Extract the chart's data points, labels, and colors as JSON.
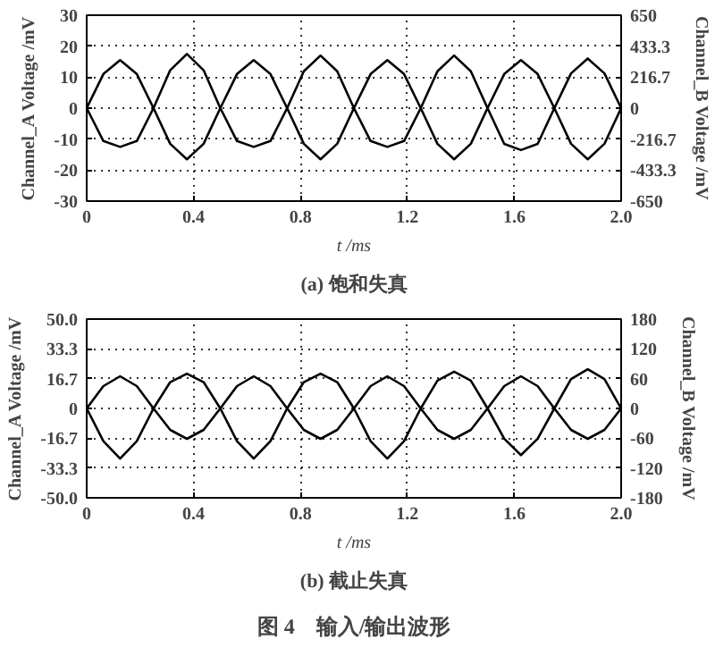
{
  "chart_data": [
    {
      "type": "line",
      "title": "(a) 饱和失真",
      "xlabel": "t /ms",
      "ylabel": "Channel_A Voltage /mV",
      "y2label": "Channel_B Voltage /mV",
      "x": [
        0,
        0.0625,
        0.125,
        0.1875,
        0.25,
        0.3125,
        0.375,
        0.4375,
        0.5,
        0.5625,
        0.625,
        0.6875,
        0.75,
        0.8125,
        0.875,
        0.9375,
        1.0,
        1.0625,
        1.125,
        1.1875,
        1.25,
        1.3125,
        1.375,
        1.4375,
        1.5,
        1.5625,
        1.625,
        1.6875,
        1.75,
        1.8125,
        1.875,
        1.9375,
        2.0
      ],
      "series": [
        {
          "color": "#000000",
          "values": [
            0,
            11,
            15.5,
            11,
            0,
            -11.5,
            -16.5,
            -11.5,
            0,
            11,
            15.5,
            11,
            0,
            -11.5,
            -16.5,
            -11.5,
            0,
            11,
            15.5,
            11,
            0,
            -11.5,
            -16.5,
            -11.5,
            0,
            11,
            15.5,
            11,
            0,
            -11.5,
            -16.5,
            -11.5,
            0
          ]
        },
        {
          "color": "#000000",
          "axis": "y2",
          "values": [
            0,
            -230,
            -271,
            -230,
            0,
            265,
            379,
            265,
            0,
            -230,
            -271,
            -230,
            0,
            258,
            368,
            258,
            0,
            -230,
            -271,
            -230,
            0,
            258,
            368,
            258,
            0,
            -250,
            -293,
            -250,
            0,
            243,
            347,
            243,
            0
          ]
        }
      ],
      "xlim": [
        0,
        2.0
      ],
      "xticks": [
        0,
        0.4,
        0.8,
        1.2,
        1.6,
        {
          "value": 2.0,
          "label": "2.0"
        }
      ],
      "ylim": [
        -30,
        30
      ],
      "yticks": [
        -30,
        -20,
        -10,
        0,
        10,
        20,
        30
      ],
      "y2lim": [
        -650,
        650
      ],
      "y2ticks": [
        -650,
        -433.3,
        -216.7,
        0,
        216.7,
        433.3,
        650
      ],
      "grid": true,
      "line_style": "solid"
    },
    {
      "type": "line",
      "title": "(b) 截止失真",
      "xlabel": "t /ms",
      "ylabel": "Channel_A Voltage /mV",
      "y2label": "Channel_B Voltage /mV",
      "annotations": [
        "图 4　输入/输出波形"
      ],
      "x": [
        0,
        0.0625,
        0.125,
        0.1875,
        0.25,
        0.3125,
        0.375,
        0.4375,
        0.5,
        0.5625,
        0.625,
        0.6875,
        0.75,
        0.8125,
        0.875,
        0.9375,
        1.0,
        1.0625,
        1.125,
        1.1875,
        1.25,
        1.3125,
        1.375,
        1.4375,
        1.5,
        1.5625,
        1.625,
        1.6875,
        1.75,
        1.8125,
        1.875,
        1.9375,
        2.0
      ],
      "series": [
        {
          "color": "#000000",
          "values": [
            0,
            12.5,
            18,
            12.5,
            0,
            -12,
            -17,
            -12,
            0,
            12.5,
            18,
            12.5,
            0,
            -12,
            -17,
            -12,
            0,
            12.5,
            18,
            12.5,
            0,
            -12,
            -17,
            -12,
            0,
            12.5,
            18,
            12.5,
            0,
            -12,
            -17,
            -12,
            0
          ]
        },
        {
          "color": "#000000",
          "axis": "y2",
          "values": [
            0,
            -66,
            -101,
            -66,
            0,
            53,
            70,
            53,
            0,
            -66,
            -101,
            -66,
            0,
            53,
            70,
            53,
            0,
            -66,
            -101,
            -66,
            0,
            56,
            74,
            56,
            0,
            -61,
            -94,
            -61,
            0,
            59,
            79,
            59,
            0
          ]
        }
      ],
      "xlim": [
        0,
        2.0
      ],
      "xticks": [
        0,
        0.4,
        0.8,
        1.2,
        1.6,
        {
          "value": 2.0,
          "label": "2.0"
        }
      ],
      "ylim": [
        -50,
        50
      ],
      "yticks": [
        {
          "value": -50,
          "label": "-50.0"
        },
        -33.3,
        -16.7,
        0,
        16.7,
        33.3,
        {
          "value": 50,
          "label": "50.0"
        }
      ],
      "y2lim": [
        -180,
        180
      ],
      "y2ticks": [
        -180,
        -120,
        -60,
        0,
        60,
        120,
        180
      ],
      "grid": true,
      "line_style": "solid"
    }
  ]
}
